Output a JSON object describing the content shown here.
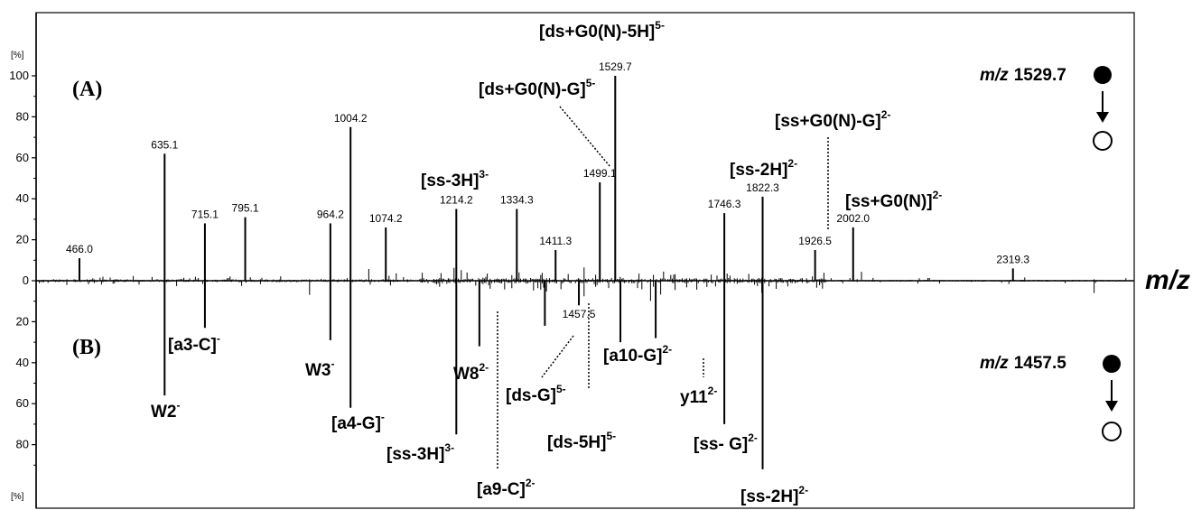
{
  "chart_data": {
    "type": "bar",
    "xlabel": "m/z",
    "x_range": [
      380,
      2560
    ],
    "y_range_top": [
      0,
      110
    ],
    "y_range_bottom": [
      0,
      110
    ],
    "y_unit_top": "[%]",
    "y_unit_bottom": "[%]",
    "yticks_top": [
      "0",
      "20",
      "40",
      "60",
      "80",
      "100"
    ],
    "yticks_bottom": [
      "20",
      "40",
      "60",
      "80"
    ],
    "panels": [
      {
        "id": "top",
        "label": "(A)",
        "precursor_mz": "m/z",
        "precursor_value": "1529.7"
      },
      {
        "id": "bottom",
        "label": "(B)",
        "precursor_mz": "m/z",
        "precursor_value": "1457.5"
      }
    ],
    "series": [
      {
        "name": "top",
        "peaks": [
          {
            "x": 466.0,
            "y": 11,
            "label": "466.0"
          },
          {
            "x": 635.1,
            "y": 62,
            "label": "635.1"
          },
          {
            "x": 715.1,
            "y": 28,
            "label": "715.1"
          },
          {
            "x": 795.1,
            "y": 31,
            "label": "795.1"
          },
          {
            "x": 964.2,
            "y": 28,
            "label": "964.2"
          },
          {
            "x": 1004.2,
            "y": 75,
            "label": "1004.2"
          },
          {
            "x": 1074.2,
            "y": 26,
            "label": "1074.2"
          },
          {
            "x": 1214.2,
            "y": 35,
            "label": "1214.2"
          },
          {
            "x": 1334.3,
            "y": 35,
            "label": "1334.3"
          },
          {
            "x": 1411.3,
            "y": 15,
            "label": "1411.3"
          },
          {
            "x": 1499.1,
            "y": 48,
            "label": "1499.1"
          },
          {
            "x": 1529.7,
            "y": 100,
            "label": "1529.7"
          },
          {
            "x": 1746.3,
            "y": 33,
            "label": "1746.3"
          },
          {
            "x": 1822.3,
            "y": 41,
            "label": "1822.3"
          },
          {
            "x": 1926.5,
            "y": 15,
            "label": "1926.5"
          },
          {
            "x": 2002.0,
            "y": 26,
            "label": "2002.0"
          },
          {
            "x": 2319.3,
            "y": 6,
            "label": "2319.3"
          }
        ]
      },
      {
        "name": "bottom",
        "peaks": [
          {
            "x": 635.1,
            "y": 56
          },
          {
            "x": 715.1,
            "y": 23
          },
          {
            "x": 964.2,
            "y": 29
          },
          {
            "x": 1004.2,
            "y": 62
          },
          {
            "x": 1214.2,
            "y": 75
          },
          {
            "x": 1260,
            "y": 32
          },
          {
            "x": 1390,
            "y": 22
          },
          {
            "x": 1457.5,
            "y": 12,
            "label": "1457.5"
          },
          {
            "x": 1540,
            "y": 30
          },
          {
            "x": 1610,
            "y": 28
          },
          {
            "x": 1746.3,
            "y": 70
          },
          {
            "x": 1822.3,
            "y": 92
          }
        ]
      }
    ],
    "annotations": [
      {
        "base": "[ds+G0(N)-5H]",
        "sup": "5-"
      },
      {
        "base": "[ds+G0(N)-G]",
        "sup": "5-"
      },
      {
        "base": "[ss+G0(N)-G]",
        "sup": "2-"
      },
      {
        "base": "[ss-3H]",
        "sup": "3-"
      },
      {
        "base": "[ss-2H]",
        "sup": "2-"
      },
      {
        "base": "[ss+G0(N)]",
        "sup": "2-"
      },
      {
        "base": "[a3-C]",
        "sup": "-"
      },
      {
        "base": "W2",
        "sup": "-"
      },
      {
        "base": "W3",
        "sup": "-"
      },
      {
        "base": "[a4-G]",
        "sup": "-"
      },
      {
        "base": "W8",
        "sup": "2-"
      },
      {
        "base": "[ds-G]",
        "sup": "5-"
      },
      {
        "base": "[a10-G]",
        "sup": "2-"
      },
      {
        "base": "y11",
        "sup": "2-"
      },
      {
        "base": "[ss-3H]",
        "sup": "3-"
      },
      {
        "base": "[ds-5H]",
        "sup": "5-"
      },
      {
        "base": "[ss- G]",
        "sup": "2-"
      },
      {
        "base": "[a9-C]",
        "sup": "2-"
      },
      {
        "base": "[ss-2H]",
        "sup": "2-"
      }
    ]
  }
}
